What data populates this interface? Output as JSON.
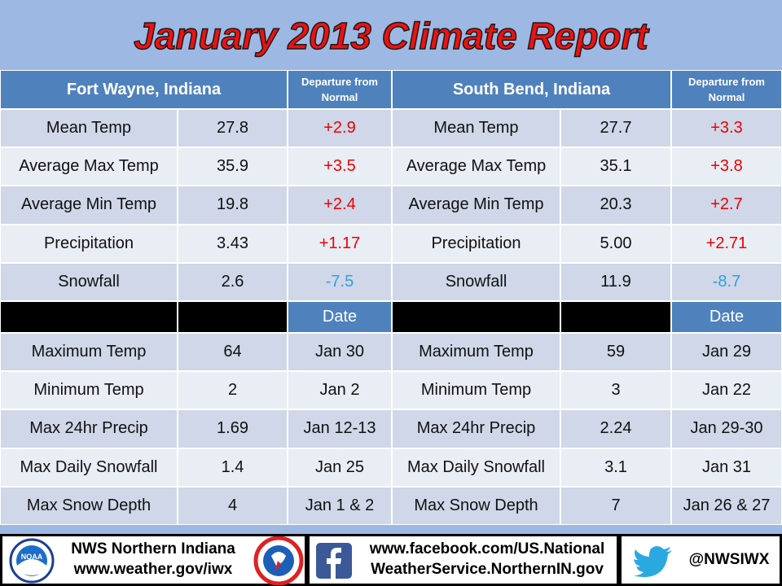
{
  "title": "January 2013 Climate Report",
  "table": {
    "header": [
      "Fort Wayne, Indiana",
      "Departure from Normal",
      "South Bend, Indiana",
      "Departure from Normal"
    ],
    "rows": [
      [
        "Mean Temp",
        "27.8",
        "+2.9",
        "Mean Temp",
        "27.7",
        "+3.3"
      ],
      [
        "Average  Max Temp",
        "35.9",
        "+3.5",
        "Average Max Temp",
        "35.1",
        "+3.8"
      ],
      [
        "Average  Min Temp",
        "19.8",
        "+2.4",
        "Average Min Temp",
        "20.3",
        "+2.7"
      ],
      [
        "Precipitation",
        "3.43",
        "+1.17",
        "Precipitation",
        "5.00",
        "+2.71"
      ],
      [
        "Snowfall",
        "2.6",
        "-7.5",
        "Snowfall",
        "11.9",
        "-8.7"
      ]
    ],
    "date_header": [
      "Date",
      "Date"
    ],
    "records": [
      [
        "Maximum Temp",
        "64",
        "Jan 30",
        "Maximum Temp",
        "59",
        "Jan 29"
      ],
      [
        "Minimum Temp",
        "2",
        "Jan 2",
        "Minimum Temp",
        "3",
        "Jan 22"
      ],
      [
        "Max 24hr Precip",
        "1.69",
        "Jan 12-13",
        "Max 24hr Precip",
        "2.24",
        "Jan 29-30"
      ],
      [
        "Max Daily Snowfall",
        "1.4",
        "Jan 25",
        "Max Daily Snowfall",
        "3.1",
        "Jan 31"
      ],
      [
        "Max Snow Depth",
        "4",
        "Jan 1 & 2",
        "Max Snow Depth",
        "7",
        "Jan 26 & 27"
      ]
    ]
  },
  "footer": {
    "office": "NWS  Northern Indiana",
    "website": "www.weather.gov/iwx",
    "noaa_logo": "NOAA",
    "facebook_line1": "www.facebook.com/US.National",
    "facebook_line2": "WeatherService.NorthernIN.gov",
    "twitter": "@NWSIWX"
  }
}
